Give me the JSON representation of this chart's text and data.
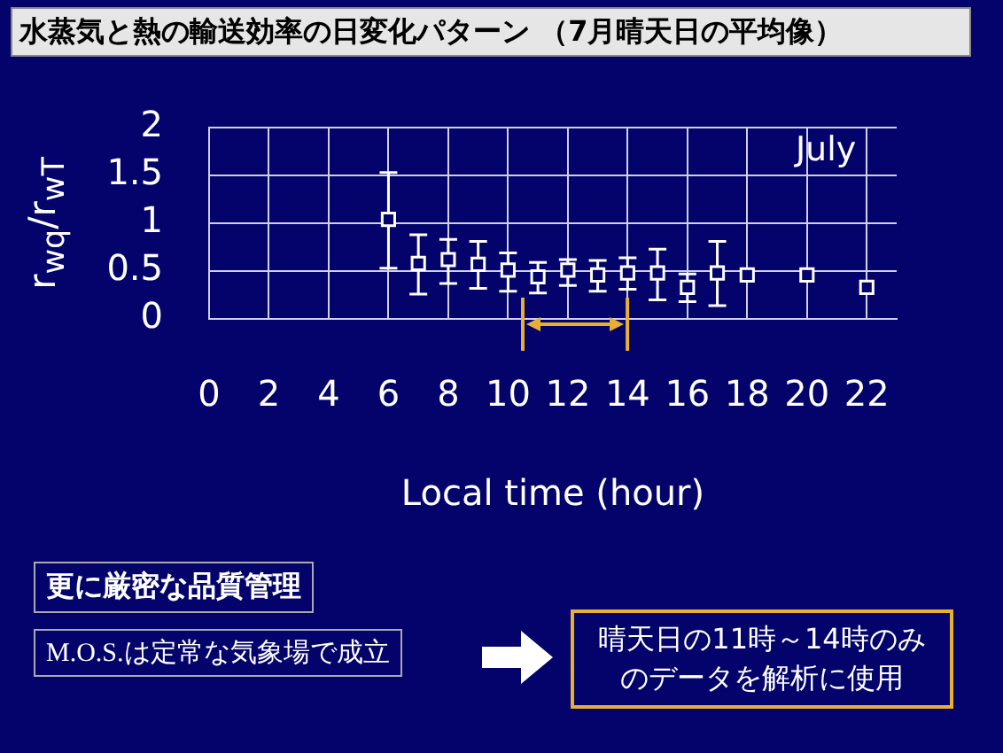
{
  "chart_data": {
    "type": "scatter",
    "title": "水蒸気と熱の輸送効率の日変化パターン （7月晴天日の平均像）",
    "xlabel": "Local time (hour)",
    "ylabel": "r$_{wq}$/r$_{wT}$",
    "x": [
      6,
      7,
      8,
      9,
      10,
      11,
      12,
      13,
      14,
      15,
      16,
      17,
      18,
      20,
      22
    ],
    "values": [
      1.04,
      0.58,
      0.62,
      0.57,
      0.51,
      0.44,
      0.51,
      0.46,
      0.48,
      0.48,
      0.33,
      0.48,
      0.46,
      0.46,
      0.33
    ],
    "errors": [
      [
        0.53,
        1.53
      ],
      [
        0.26,
        0.88
      ],
      [
        0.37,
        0.83
      ],
      [
        0.32,
        0.81
      ],
      [
        0.29,
        0.69
      ],
      [
        0.27,
        0.59
      ],
      [
        0.35,
        0.62
      ],
      [
        0.29,
        0.61
      ],
      [
        0.31,
        0.64
      ],
      [
        0.2,
        0.73
      ],
      [
        0.18,
        0.47
      ],
      [
        0.14,
        0.81
      ],
      null,
      null,
      null
    ],
    "color": "#ffffff",
    "marker": "square",
    "grid": true,
    "xlim": [
      0,
      23
    ],
    "xticks": [
      0,
      2,
      4,
      6,
      8,
      10,
      12,
      14,
      16,
      18,
      20,
      22
    ],
    "ylim": [
      0,
      2
    ],
    "yticks": [
      0,
      0.5,
      1,
      1.5,
      2
    ],
    "annotations": [
      "July",
      "更に厳密な品質管理",
      "M.O.S.は定常な気象場で成立",
      "晴天日の11時～14時のみのデータを解析に使用"
    ]
  }
}
